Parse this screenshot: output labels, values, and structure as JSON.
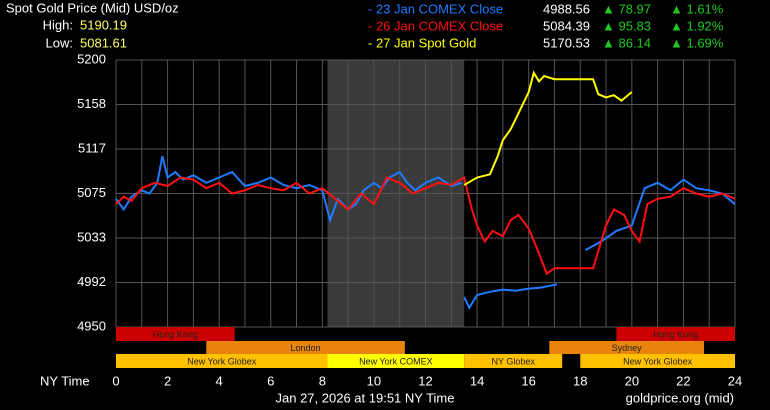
{
  "chart_data": {
    "type": "line",
    "title": "Spot Gold Price (Mid) USD/oz",
    "high_label": "High:",
    "high": 5190.19,
    "low_label": "Low:",
    "low": 5081.61,
    "x_label": "NY Time",
    "timestamp": "Jan 27, 2026 at 19:51 NY Time",
    "source": "goldprice.org (mid)",
    "xlim": [
      0,
      24
    ],
    "xticks": [
      0,
      2,
      4,
      6,
      8,
      10,
      12,
      14,
      16,
      18,
      20,
      22,
      24
    ],
    "xgrid": [
      0,
      1,
      2,
      3,
      4,
      5,
      6,
      7,
      8,
      9,
      10,
      11,
      12,
      13,
      14,
      15,
      16,
      17,
      18,
      19,
      20,
      21,
      22,
      23,
      24
    ],
    "ylim": [
      4950,
      5200
    ],
    "yticks": [
      5200,
      {
        "value": 5158.33,
        "label": "5158"
      },
      {
        "value": 5116.67,
        "label": "5117"
      },
      5075,
      {
        "value": 5033.33,
        "label": "5033"
      },
      {
        "value": 4991.67,
        "label": "4992"
      },
      4950
    ],
    "grid": true,
    "shaded": [
      8.2,
      13.5
    ],
    "series": [
      {
        "name": "- 23 Jan COMEX Close",
        "color": "#1f7bff",
        "close": 4988.56,
        "change": {
          "value": 78.97,
          "label": "▲ 78.97"
        },
        "change_pct": {
          "value": 1.61,
          "label": "▲ 1.61%"
        },
        "x": [
          0,
          0.3,
          0.6,
          1,
          1.3,
          1.6,
          1.8,
          2,
          2.3,
          2.6,
          3,
          3.5,
          4,
          4.5,
          5,
          5.5,
          6,
          6.5,
          7,
          7.5,
          8,
          8.3,
          8.6,
          9,
          9.3,
          9.6,
          10,
          10.3,
          10.6,
          11,
          11.3,
          11.6,
          12,
          12.5,
          13,
          13.4,
          13.45,
          13.5,
          13.7,
          14,
          14.5,
          15,
          15.5,
          16,
          16.5,
          17.1,
          17.6,
          18.2,
          18.8,
          19.4,
          20,
          20.5,
          21,
          21.5,
          22,
          22.5,
          23,
          23.5,
          24
        ],
        "values": [
          5070,
          5060,
          5072,
          5078,
          5075,
          5085,
          5110,
          5090,
          5095,
          5088,
          5092,
          5085,
          5090,
          5095,
          5082,
          5085,
          5090,
          5083,
          5080,
          5083,
          5078,
          5050,
          5070,
          5060,
          5065,
          5078,
          5085,
          5080,
          5090,
          5095,
          5085,
          5078,
          5085,
          5090,
          5082,
          5085,
          null,
          4978,
          4968,
          4980,
          4983,
          4985,
          4984,
          4986,
          4987,
          4990,
          null,
          5022,
          5030,
          5040,
          5045,
          5080,
          5085,
          5078,
          5088,
          5080,
          5078,
          5075,
          5065
        ]
      },
      {
        "name": "- 26 Jan COMEX Close",
        "color": "#ff1010",
        "close": 5084.39,
        "change": {
          "value": 95.83,
          "label": "▲ 95.83"
        },
        "change_pct": {
          "value": 1.92,
          "label": "▲ 1.92%"
        },
        "x": [
          0,
          0.3,
          0.6,
          1,
          1.5,
          2,
          2.5,
          3,
          3.5,
          4,
          4.5,
          5,
          5.5,
          6,
          6.5,
          7,
          7.5,
          8,
          8.5,
          9,
          9.5,
          10,
          10.5,
          11,
          11.5,
          12,
          12.5,
          13,
          13.5,
          13.8,
          14,
          14.3,
          14.6,
          15,
          15.3,
          15.6,
          16,
          16.3,
          16.7,
          17,
          17.5,
          18,
          18.5,
          19,
          19.3,
          19.7,
          20,
          20.3,
          20.6,
          21,
          21.5,
          22,
          22.5,
          23,
          23.5,
          24
        ],
        "values": [
          5065,
          5072,
          5068,
          5080,
          5085,
          5082,
          5090,
          5088,
          5080,
          5085,
          5075,
          5078,
          5083,
          5080,
          5078,
          5085,
          5075,
          5080,
          5070,
          5060,
          5075,
          5065,
          5090,
          5085,
          5075,
          5080,
          5085,
          5083,
          5090,
          5060,
          5045,
          5030,
          5040,
          5035,
          5050,
          5055,
          5042,
          5025,
          5000,
          5005,
          5005,
          5005,
          5005,
          5045,
          5060,
          5055,
          5040,
          5030,
          5065,
          5070,
          5072,
          5080,
          5075,
          5072,
          5075,
          5070
        ]
      },
      {
        "name": "- 27 Jan Spot Gold",
        "color": "#ffff00",
        "close": 5170.53,
        "change": {
          "value": 86.14,
          "label": "▲ 86.14"
        },
        "change_pct": {
          "value": 1.69,
          "label": "▲ 1.69%"
        },
        "x": [
          13.5,
          14,
          14.5,
          14.8,
          15,
          15.3,
          15.6,
          16,
          16.2,
          16.4,
          16.6,
          17,
          17.5,
          18,
          18.5,
          18.7,
          19,
          19.3,
          19.6,
          20
        ],
        "values": [
          5083,
          5090,
          5093,
          5110,
          5125,
          5135,
          5150,
          5170,
          5188,
          5180,
          5185,
          5182,
          5182,
          5182,
          5182,
          5168,
          5165,
          5167,
          5162,
          5170
        ]
      }
    ],
    "sessions": [
      {
        "label": "Hong Kong",
        "start": 0,
        "end": 4.6,
        "row": 0,
        "color": "#cc0000"
      },
      {
        "label": "Hong Kong",
        "start": 19.4,
        "end": 24,
        "row": 0,
        "color": "#cc0000"
      },
      {
        "label": "London",
        "start": 3.5,
        "end": 11.2,
        "row": 1,
        "color": "#e8830c"
      },
      {
        "label": "Sydney",
        "start": 16.8,
        "end": 22.8,
        "row": 1,
        "color": "#e8830c"
      },
      {
        "label": "New York Globex",
        "start": 0,
        "end": 8.2,
        "row": 2,
        "color": "#ffc000"
      },
      {
        "label": "New York COMEX",
        "start": 8.2,
        "end": 13.5,
        "row": 2,
        "color": "#ffff00"
      },
      {
        "label": "NY Globex",
        "start": 13.5,
        "end": 17.3,
        "row": 2,
        "color": "#ffc000"
      },
      {
        "label": "New York Globex",
        "start": 18,
        "end": 24,
        "row": 2,
        "color": "#ffc000"
      }
    ]
  }
}
